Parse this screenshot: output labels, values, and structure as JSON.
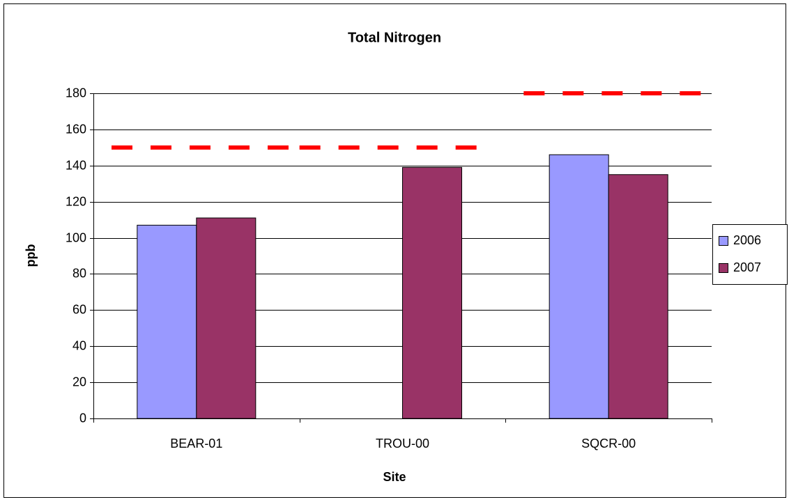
{
  "chart_data": {
    "type": "bar",
    "title": "Total Nitrogen",
    "x_label": "Site",
    "y_label": "ppb",
    "categories": [
      "BEAR-01",
      "TROU-00",
      "SQCR-00"
    ],
    "series": [
      {
        "name": "2006",
        "color": "#9999ff",
        "values": [
          107,
          null,
          146
        ]
      },
      {
        "name": "2007",
        "color": "#993366",
        "values": [
          111,
          139,
          135
        ]
      }
    ],
    "targets": {
      "color": "#ff0000",
      "values": [
        150,
        150,
        180
      ]
    },
    "ylim": [
      0,
      180
    ],
    "yticks": [
      0,
      20,
      40,
      60,
      80,
      100,
      120,
      140,
      160,
      180
    ],
    "grid": true,
    "legend": "right"
  }
}
